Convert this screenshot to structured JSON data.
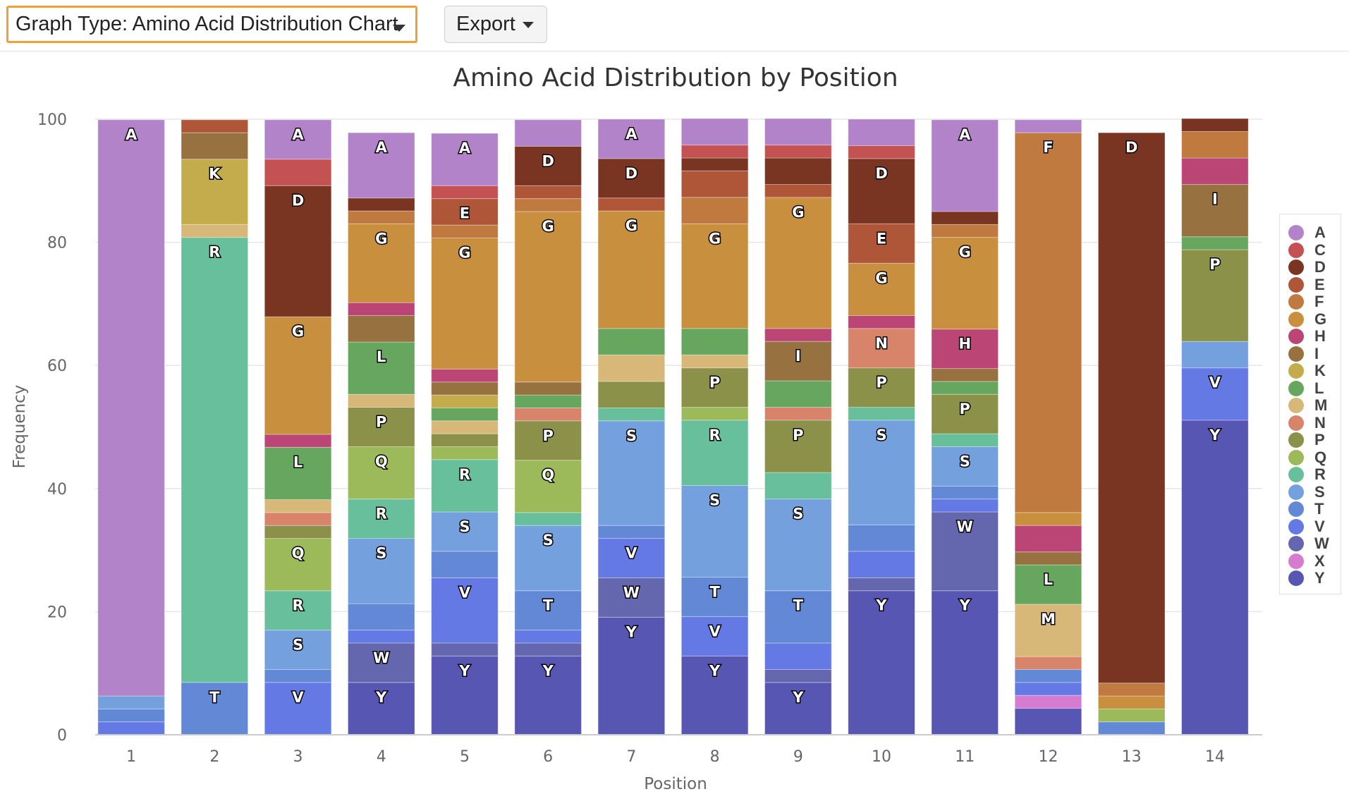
{
  "toolbar": {
    "graph_type_label": "Graph Type: Amino Acid Distribution Chart",
    "export_label": "Export"
  },
  "chart_data": {
    "type": "bar",
    "stacked": true,
    "title": "Amino Acid Distribution by Position",
    "xlabel": "Position",
    "ylabel": "Frequency",
    "ylim": [
      0,
      100
    ],
    "yticks": [
      0,
      20,
      40,
      60,
      80,
      100
    ],
    "grid": true,
    "legend_position": "right",
    "categories": [
      "1",
      "2",
      "3",
      "4",
      "5",
      "6",
      "7",
      "8",
      "9",
      "10",
      "11",
      "12",
      "13",
      "14"
    ],
    "stack_order": [
      "Y",
      "X",
      "W",
      "V",
      "T",
      "S",
      "R",
      "Q",
      "P",
      "N",
      "M",
      "L",
      "K",
      "I",
      "H",
      "G",
      "F",
      "E",
      "D",
      "C",
      "A"
    ],
    "legend": [
      "A",
      "C",
      "D",
      "E",
      "F",
      "G",
      "H",
      "I",
      "K",
      "L",
      "M",
      "N",
      "P",
      "Q",
      "R",
      "S",
      "T",
      "V",
      "W",
      "X",
      "Y"
    ],
    "colors": {
      "A": "#b283c9",
      "C": "#c45252",
      "D": "#7a3422",
      "E": "#b05638",
      "F": "#c07a40",
      "G": "#c8903e",
      "H": "#bb4675",
      "I": "#977140",
      "K": "#c4ac4c",
      "L": "#67a65f",
      "M": "#d8b878",
      "N": "#d7846a",
      "P": "#8b9148",
      "Q": "#9cba5a",
      "R": "#67bf9c",
      "S": "#74a0de",
      "T": "#6389d6",
      "V": "#6479e3",
      "W": "#6567ae",
      "X": "#d67cd0",
      "Y": "#5856b3"
    },
    "series": [
      {
        "name": "Y",
        "values": [
          0,
          0,
          0,
          8.5,
          12.8,
          12.8,
          19.1,
          12.8,
          8.5,
          23.4,
          23.4,
          4.3,
          0,
          51.1
        ]
      },
      {
        "name": "X",
        "values": [
          0,
          0,
          0,
          0,
          0,
          0,
          0,
          0,
          0,
          0,
          0,
          2.1,
          0,
          0
        ]
      },
      {
        "name": "W",
        "values": [
          0,
          0,
          0,
          6.4,
          2.1,
          2.1,
          6.4,
          0,
          2.1,
          2.1,
          12.8,
          0,
          0,
          0
        ]
      },
      {
        "name": "V",
        "values": [
          2.1,
          0,
          8.5,
          2.1,
          10.6,
          2.1,
          6.4,
          6.4,
          4.3,
          4.3,
          2.1,
          2.1,
          0,
          8.5
        ]
      },
      {
        "name": "T",
        "values": [
          2.1,
          8.5,
          2.1,
          4.3,
          4.3,
          6.4,
          2.1,
          6.4,
          8.5,
          4.3,
          2.1,
          2.1,
          2.1,
          0
        ]
      },
      {
        "name": "S",
        "values": [
          2.1,
          0,
          6.4,
          10.6,
          6.4,
          10.6,
          17.0,
          14.9,
          14.9,
          17.0,
          6.4,
          0,
          0,
          4.3
        ]
      },
      {
        "name": "R",
        "values": [
          0,
          72.3,
          6.4,
          6.4,
          8.5,
          2.1,
          2.1,
          10.6,
          4.3,
          2.1,
          2.1,
          0,
          0,
          0
        ]
      },
      {
        "name": "Q",
        "values": [
          0,
          0,
          8.5,
          8.5,
          2.1,
          8.5,
          0,
          2.1,
          0,
          0,
          0,
          0,
          2.1,
          0
        ]
      },
      {
        "name": "P",
        "values": [
          0,
          0,
          2.1,
          6.4,
          2.1,
          6.4,
          4.3,
          6.4,
          8.5,
          6.4,
          6.4,
          0,
          0,
          14.9
        ]
      },
      {
        "name": "N",
        "values": [
          0,
          0,
          2.1,
          0,
          0,
          2.1,
          0,
          0,
          2.1,
          6.4,
          0,
          2.1,
          0,
          0
        ]
      },
      {
        "name": "M",
        "values": [
          0,
          2.1,
          2.1,
          2.1,
          2.1,
          0,
          4.3,
          2.1,
          0,
          0,
          0,
          8.5,
          0,
          0
        ]
      },
      {
        "name": "L",
        "values": [
          0,
          0,
          8.5,
          8.5,
          2.1,
          2.1,
          4.3,
          4.3,
          4.3,
          0,
          2.1,
          6.4,
          0,
          2.1
        ]
      },
      {
        "name": "K",
        "values": [
          0,
          10.6,
          0,
          0,
          2.1,
          0,
          0,
          0,
          0,
          0,
          0,
          0,
          0,
          0
        ]
      },
      {
        "name": "I",
        "values": [
          0,
          4.3,
          0,
          4.3,
          2.1,
          2.1,
          0,
          0,
          6.4,
          0,
          2.1,
          2.1,
          0,
          8.5
        ]
      },
      {
        "name": "H",
        "values": [
          0,
          0,
          2.1,
          2.1,
          2.1,
          0,
          0,
          0,
          2.1,
          2.1,
          6.4,
          4.3,
          0,
          4.3
        ]
      },
      {
        "name": "G",
        "values": [
          0,
          0,
          19.1,
          12.8,
          21.3,
          27.7,
          19.1,
          17.0,
          21.3,
          8.5,
          14.9,
          2.1,
          2.1,
          0
        ]
      },
      {
        "name": "F",
        "values": [
          0,
          0,
          0,
          2.1,
          2.1,
          2.1,
          0,
          4.3,
          0,
          0,
          2.1,
          61.7,
          2.1,
          4.3
        ]
      },
      {
        "name": "E",
        "values": [
          0,
          2.1,
          0,
          0,
          4.3,
          2.1,
          2.1,
          4.3,
          2.1,
          6.4,
          0,
          0,
          0,
          0
        ]
      },
      {
        "name": "D",
        "values": [
          0,
          0,
          21.3,
          2.1,
          0,
          6.4,
          6.4,
          2.1,
          4.3,
          10.6,
          2.1,
          0,
          89.4,
          2.1
        ]
      },
      {
        "name": "C",
        "values": [
          0,
          0,
          4.3,
          0,
          2.1,
          0,
          0,
          2.1,
          2.1,
          2.1,
          0,
          0,
          0,
          0
        ]
      },
      {
        "name": "A",
        "values": [
          93.6,
          0,
          6.4,
          10.6,
          8.5,
          4.3,
          6.4,
          4.3,
          4.3,
          4.3,
          14.9,
          2.1,
          0,
          0
        ]
      }
    ],
    "segment_labels": [
      [
        "A"
      ],
      [
        "K",
        "R",
        "T"
      ],
      [
        "A",
        "D",
        "G",
        "L",
        "Q",
        "R",
        "S",
        "V"
      ],
      [
        "A",
        "G",
        "L",
        "P",
        "Q",
        "R",
        "S",
        "W",
        "Y"
      ],
      [
        "A",
        "E",
        "G",
        "R",
        "S",
        "V",
        "Y"
      ],
      [
        "D",
        "G",
        "P",
        "Q",
        "S",
        "T",
        "Y"
      ],
      [
        "A",
        "D",
        "G",
        "S",
        "V",
        "W",
        "Y"
      ],
      [
        "G",
        "P",
        "R",
        "S",
        "T",
        "V",
        "Y"
      ],
      [
        "G",
        "I",
        "P",
        "S",
        "T",
        "Y"
      ],
      [
        "D",
        "E",
        "G",
        "N",
        "P",
        "S",
        "Y"
      ],
      [
        "A",
        "G",
        "H",
        "P",
        "S",
        "W",
        "Y"
      ],
      [
        "F",
        "L",
        "M"
      ],
      [
        "D"
      ],
      [
        "I",
        "P",
        "V",
        "Y"
      ]
    ]
  }
}
